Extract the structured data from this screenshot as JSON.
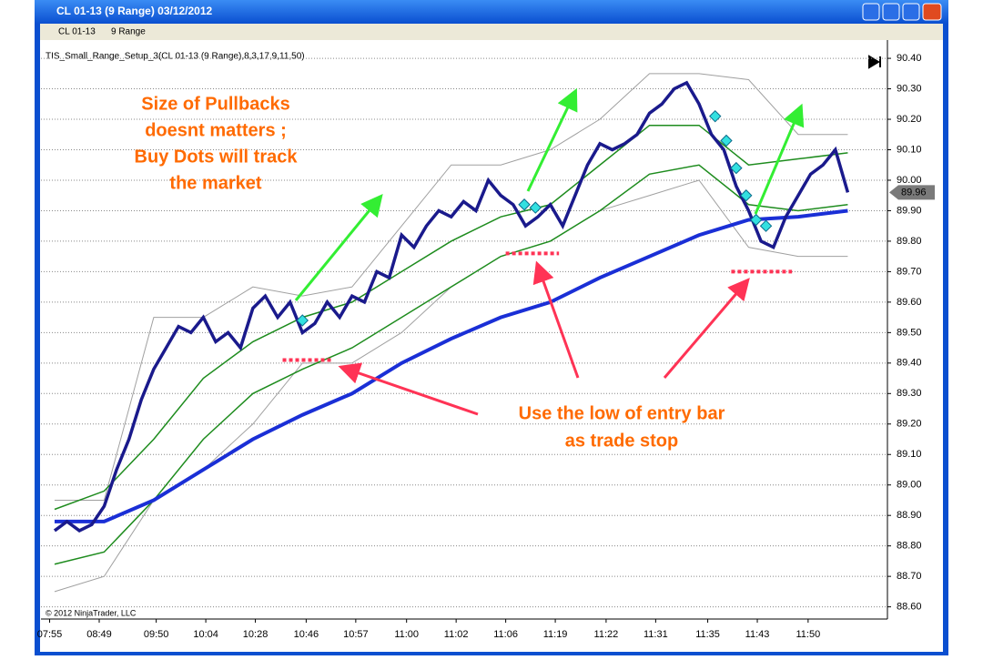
{
  "window_title": "CL 01-13 (9 Range)  03/12/2012",
  "toolbar": {
    "instrument": "CL 01-13",
    "period": "9 Range"
  },
  "chart_data": {
    "type": "line",
    "indicator_label": "TIS_Small_Range_Setup_3(CL 01-13 (9 Range),8,3,17,9,11,50)",
    "copyright": "© 2012 NinjaTrader, LLC",
    "last_price": {
      "value": 89.96,
      "label": "89.96"
    },
    "annotations": [
      {
        "lines": [
          "Size of Pullbacks",
          "doesnt matters ;",
          "Buy Dots will track",
          "the market"
        ],
        "color": "#ff6a00"
      },
      {
        "lines": [
          "Use the low of entry bar",
          "as trade stop"
        ],
        "color": "#ff6a00"
      }
    ],
    "xlim": [
      -1.1,
      67.2
    ],
    "xticks": [
      {
        "value": -0.4,
        "label": "07:55"
      },
      {
        "value": 3.6,
        "label": "08:49"
      },
      {
        "value": 8.2,
        "label": "09:50"
      },
      {
        "value": 12.2,
        "label": "10:04"
      },
      {
        "value": 16.2,
        "label": "10:28"
      },
      {
        "value": 20.3,
        "label": "10:46"
      },
      {
        "value": 24.3,
        "label": "10:57"
      },
      {
        "value": 28.4,
        "label": "11:00"
      },
      {
        "value": 32.4,
        "label": "11:02"
      },
      {
        "value": 36.4,
        "label": "11:06"
      },
      {
        "value": 40.4,
        "label": "11:19"
      },
      {
        "value": 44.5,
        "label": "11:22"
      },
      {
        "value": 48.5,
        "label": "11:31"
      },
      {
        "value": 52.7,
        "label": "11:35"
      },
      {
        "value": 56.7,
        "label": "11:43"
      },
      {
        "value": 60.8,
        "label": "11:50"
      }
    ],
    "ylim": [
      88.56,
      90.46
    ],
    "yticks": [
      {
        "value": 88.6,
        "label": "88.60"
      },
      {
        "value": 88.7,
        "label": "88.70"
      },
      {
        "value": 88.8,
        "label": "88.80"
      },
      {
        "value": 88.9,
        "label": "88.90"
      },
      {
        "value": 89.0,
        "label": "89.00"
      },
      {
        "value": 89.1,
        "label": "89.10"
      },
      {
        "value": 89.2,
        "label": "89.20"
      },
      {
        "value": 89.3,
        "label": "89.30"
      },
      {
        "value": 89.4,
        "label": "89.40"
      },
      {
        "value": 89.5,
        "label": "89.50"
      },
      {
        "value": 89.6,
        "label": "89.60"
      },
      {
        "value": 89.7,
        "label": "89.70"
      },
      {
        "value": 89.8,
        "label": "89.80"
      },
      {
        "value": 89.9,
        "label": "89.90"
      },
      {
        "value": 90.0,
        "label": "90.00"
      },
      {
        "value": 90.1,
        "label": "90.10"
      },
      {
        "value": 90.2,
        "label": "90.20"
      },
      {
        "value": 90.3,
        "label": "90.30"
      },
      {
        "value": 90.4,
        "label": "90.40"
      }
    ],
    "grid": true,
    "series": [
      {
        "color": "#1a1a8c",
        "width": 3.5,
        "values": [
          88.85,
          88.88,
          88.85,
          88.87,
          88.93,
          89.05,
          89.15,
          89.28,
          89.38,
          89.45,
          89.52,
          89.5,
          89.55,
          89.47,
          89.5,
          89.45,
          89.58,
          89.62,
          89.55,
          89.6,
          89.5,
          89.53,
          89.6,
          89.55,
          89.62,
          89.6,
          89.7,
          89.68,
          89.82,
          89.78,
          89.85,
          89.9,
          89.88,
          89.93,
          89.9,
          90.0,
          89.95,
          89.92,
          89.85,
          89.88,
          89.92,
          89.85,
          89.95,
          90.05,
          90.12,
          90.1,
          90.12,
          90.15,
          90.22,
          90.25,
          90.3,
          90.32,
          90.25,
          90.15,
          90.1,
          89.98,
          89.9,
          89.8,
          89.78,
          89.88,
          89.95,
          90.02,
          90.05,
          90.1,
          89.96
        ]
      },
      {
        "color": "#a0a0a0",
        "width": 1,
        "x": [
          0,
          4,
          8,
          12,
          16,
          20,
          24,
          28,
          32,
          36,
          40,
          44,
          48,
          52,
          56,
          60,
          64
        ],
        "values": [
          88.95,
          88.95,
          89.55,
          89.55,
          89.65,
          89.62,
          89.65,
          89.85,
          90.05,
          90.05,
          90.1,
          90.2,
          90.35,
          90.35,
          90.33,
          90.15,
          90.15
        ]
      },
      {
        "color": "#a0a0a0",
        "width": 1,
        "x": [
          0,
          4,
          8,
          12,
          16,
          20,
          24,
          28,
          32,
          36,
          40,
          44,
          48,
          52,
          56,
          60,
          64
        ],
        "values": [
          88.65,
          88.7,
          88.95,
          89.05,
          89.2,
          89.4,
          89.4,
          89.5,
          89.65,
          89.75,
          89.8,
          89.9,
          89.95,
          90.0,
          89.78,
          89.75,
          89.75
        ]
      },
      {
        "color": "#1e8c1e",
        "width": 1.5,
        "x": [
          0,
          4,
          8,
          12,
          16,
          20,
          24,
          28,
          32,
          36,
          40,
          44,
          48,
          52,
          56,
          60,
          64
        ],
        "values": [
          88.92,
          88.98,
          89.15,
          89.35,
          89.47,
          89.55,
          89.6,
          89.7,
          89.8,
          89.88,
          89.92,
          90.05,
          90.18,
          90.18,
          90.05,
          90.07,
          90.09
        ]
      },
      {
        "color": "#1e8c1e",
        "width": 1.5,
        "x": [
          0,
          4,
          8,
          12,
          16,
          20,
          24,
          28,
          32,
          36,
          40,
          44,
          48,
          52,
          56,
          60,
          64
        ],
        "values": [
          88.74,
          88.78,
          88.95,
          89.15,
          89.3,
          89.38,
          89.45,
          89.55,
          89.65,
          89.75,
          89.8,
          89.9,
          90.02,
          90.05,
          89.92,
          89.9,
          89.92
        ]
      },
      {
        "color": "#1a2fd6",
        "width": 4,
        "x": [
          0,
          4,
          8,
          12,
          16,
          20,
          24,
          28,
          32,
          36,
          40,
          44,
          48,
          52,
          56,
          60,
          64
        ],
        "values": [
          88.88,
          88.88,
          88.95,
          89.05,
          89.15,
          89.23,
          89.3,
          89.4,
          89.48,
          89.55,
          89.6,
          89.68,
          89.75,
          89.82,
          89.87,
          89.88,
          89.9
        ]
      }
    ],
    "buy_dots": {
      "color": "#33e0e0",
      "x": [
        20,
        37.9,
        38.8,
        53.3,
        54.2,
        55,
        55.8,
        56.6,
        57.4
      ],
      "values": [
        89.54,
        89.92,
        89.91,
        90.21,
        90.13,
        90.04,
        89.95,
        89.87,
        89.85
      ]
    },
    "stops": {
      "color": "#ff3355",
      "values": [
        89.41,
        89.76,
        89.7
      ],
      "x_start": [
        18.4,
        36.4,
        54.6
      ],
      "x_end": [
        22.5,
        40.7,
        59.5
      ]
    }
  }
}
